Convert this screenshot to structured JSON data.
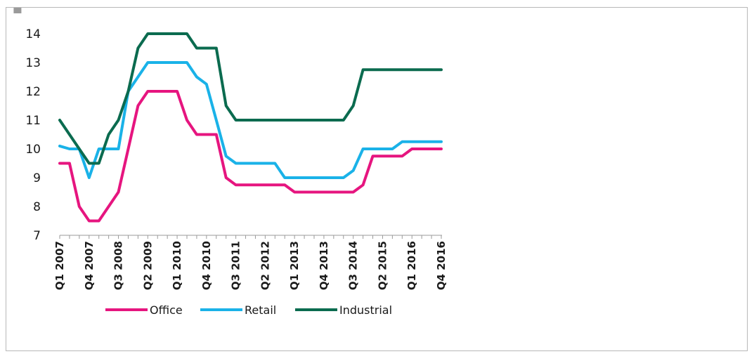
{
  "chart_data": {
    "type": "line",
    "ylim": [
      7,
      14
    ],
    "yticks": [
      "7",
      "8",
      "9",
      "10",
      "11",
      "12",
      "13",
      "14"
    ],
    "x": [
      "Q1 2007",
      "Q2 2007",
      "Q3 2007",
      "Q4 2007",
      "Q1 2008",
      "Q2 2008",
      "Q3 2008",
      "Q4 2008",
      "Q1 2009",
      "Q2 2009",
      "Q3 2009",
      "Q4 2009",
      "Q1 2010",
      "Q2 2010",
      "Q3 2010",
      "Q4 2010",
      "Q1 2011",
      "Q2 2011",
      "Q3 2011",
      "Q4 2011",
      "Q1 2012",
      "Q2 2012",
      "Q3 2012",
      "Q4 2012",
      "Q1 2013",
      "Q2 2013",
      "Q3 2013",
      "Q4 2013",
      "Q1 2014",
      "Q2 2014",
      "Q3 2014",
      "Q4 2014",
      "Q1 2015",
      "Q2 2015",
      "Q3 2015",
      "Q4 2015",
      "Q1 2016",
      "Q2 2016",
      "Q3 2016",
      "Q4 2016"
    ],
    "xtick_labels": [
      "Q1 2007",
      "Q4 2007",
      "Q3 2008",
      "Q2 2009",
      "Q1 2010",
      "Q4 2010",
      "Q3 2011",
      "Q2 2012",
      "Q1 2013",
      "Q4 2013",
      "Q3 2014",
      "Q2 2015",
      "Q1 2016",
      "Q4 2016"
    ],
    "series": [
      {
        "name": "Office",
        "color": "#e6157f",
        "values": [
          9.5,
          9.5,
          8.0,
          7.5,
          7.5,
          8.0,
          8.5,
          10.0,
          11.5,
          12.0,
          12.0,
          12.0,
          12.0,
          11.0,
          10.5,
          10.5,
          10.5,
          9.0,
          8.75,
          8.75,
          8.75,
          8.75,
          8.75,
          8.75,
          8.5,
          8.5,
          8.5,
          8.5,
          8.5,
          8.5,
          8.5,
          8.75,
          9.75,
          9.75,
          9.75,
          9.75,
          10.0,
          10.0,
          10.0,
          10.0
        ]
      },
      {
        "name": "Retail",
        "color": "#1ab2e8",
        "values": [
          10.1,
          10.0,
          10.0,
          9.0,
          10.0,
          10.0,
          10.0,
          12.0,
          12.5,
          13.0,
          13.0,
          13.0,
          13.0,
          13.0,
          12.5,
          12.25,
          11.0,
          9.75,
          9.5,
          9.5,
          9.5,
          9.5,
          9.5,
          9.0,
          9.0,
          9.0,
          9.0,
          9.0,
          9.0,
          9.0,
          9.25,
          10.0,
          10.0,
          10.0,
          10.0,
          10.25,
          10.25,
          10.25,
          10.25,
          10.25
        ]
      },
      {
        "name": "Industrial",
        "color": "#0b6b4f",
        "values": [
          11.0,
          10.5,
          10.0,
          9.5,
          9.5,
          10.5,
          11.0,
          12.0,
          13.5,
          14.0,
          14.0,
          14.0,
          14.0,
          14.0,
          13.5,
          13.5,
          13.5,
          11.5,
          11.0,
          11.0,
          11.0,
          11.0,
          11.0,
          11.0,
          11.0,
          11.0,
          11.0,
          11.0,
          11.0,
          11.0,
          11.5,
          12.75,
          12.75,
          12.75,
          12.75,
          12.75,
          12.75,
          12.75,
          12.75,
          12.75
        ]
      }
    ],
    "legend": "bottom",
    "grid": false
  }
}
